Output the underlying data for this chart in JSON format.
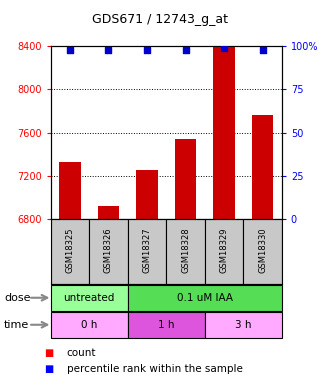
{
  "title": "GDS671 / 12743_g_at",
  "samples": [
    "GSM18325",
    "GSM18326",
    "GSM18327",
    "GSM18328",
    "GSM18329",
    "GSM18330"
  ],
  "counts": [
    7330,
    6920,
    7260,
    7540,
    8390,
    7760
  ],
  "percentiles": [
    98,
    98,
    98,
    98,
    99,
    98
  ],
  "ylim_left": [
    6800,
    8400
  ],
  "ylim_right": [
    0,
    100
  ],
  "yticks_left": [
    6800,
    7200,
    7600,
    8000,
    8400
  ],
  "yticks_right": [
    0,
    25,
    50,
    75,
    100
  ],
  "ytick_right_labels": [
    "0",
    "25",
    "50",
    "75",
    "100%"
  ],
  "bar_color": "#cc0000",
  "dot_color": "#0000cc",
  "grid_yticks": [
    7200,
    7600,
    8000
  ],
  "dose_labels": [
    {
      "text": "untreated",
      "start": 0,
      "end": 2,
      "color": "#99ff99"
    },
    {
      "text": "0.1 uM IAA",
      "start": 2,
      "end": 6,
      "color": "#55dd55"
    }
  ],
  "time_labels": [
    {
      "text": "0 h",
      "start": 0,
      "end": 2,
      "color": "#ffaaff"
    },
    {
      "text": "1 h",
      "start": 2,
      "end": 4,
      "color": "#dd55dd"
    },
    {
      "text": "3 h",
      "start": 4,
      "end": 6,
      "color": "#ffaaff"
    }
  ],
  "dose_row_label": "dose",
  "time_row_label": "time",
  "legend_count_label": "count",
  "legend_pct_label": "percentile rank within the sample",
  "bar_width": 0.55,
  "sample_bg_color": "#c8c8c8",
  "fig_bg_color": "#ffffff"
}
